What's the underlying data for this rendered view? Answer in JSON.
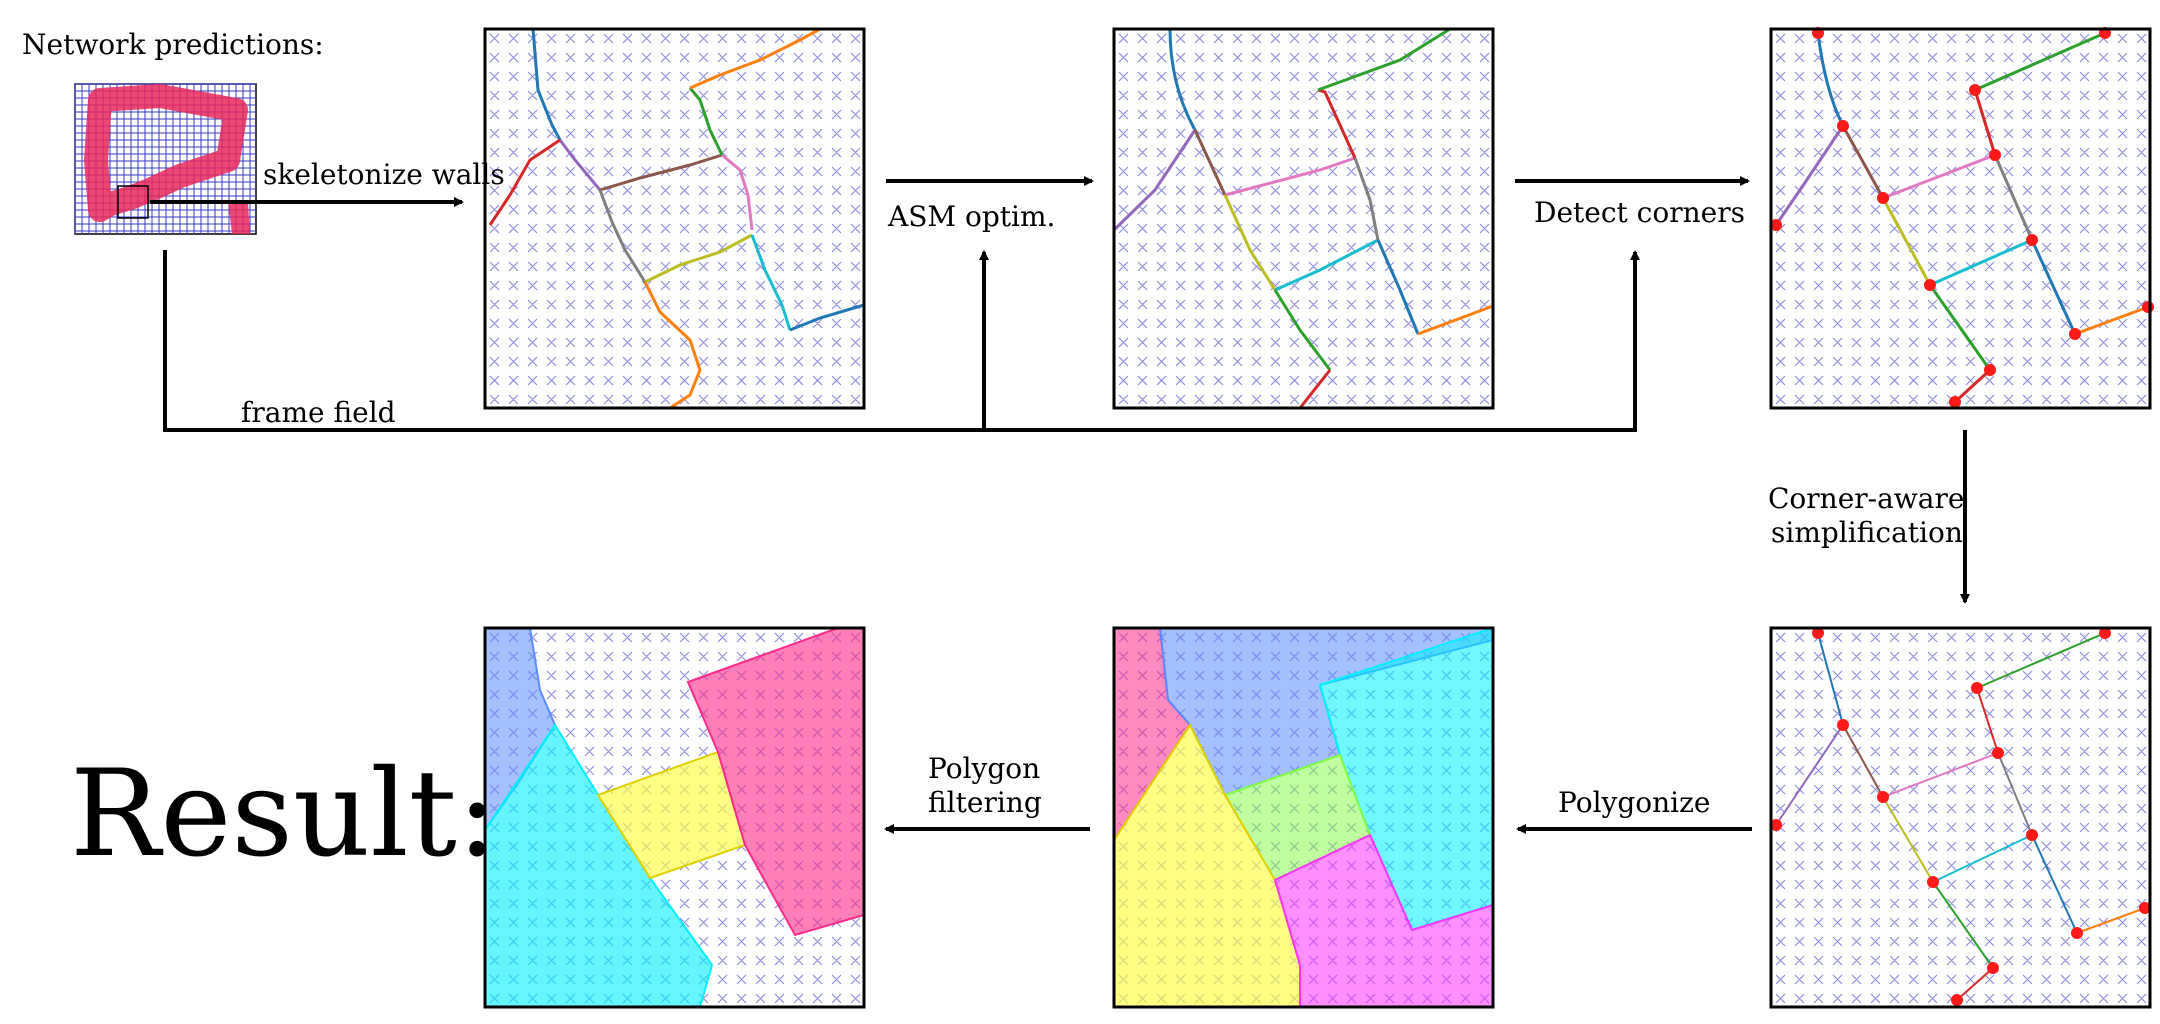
{
  "labels": {
    "network_predictions": "Network predictions:",
    "skeletonize": "skeletonize walls",
    "asm": "ASM optim.",
    "detect": "Detect corners",
    "frame_field": "frame field",
    "corner_aware_1": "Corner-aware",
    "corner_aware_2": "simplification",
    "polygonize": "Polygonize",
    "polygon_filtering_1": "Polygon",
    "polygon_filtering_2": "filtering",
    "result": "Result:"
  },
  "colors": {
    "grid": "#8f8fe0",
    "pred_grid": "#3a3ac8",
    "wall": "#e8285a",
    "corner": "#ff1a1a",
    "arrow": "#000000",
    "blue": "#5a8cff",
    "cyan": "#00f0ff",
    "yellow": "#ffff40",
    "pink": "#ff2a8a",
    "magenta": "#ff33ff",
    "green": "#80ff40"
  },
  "skeleton_palette": [
    "#1f77b4",
    "#9467bd",
    "#8c564b",
    "#e377c2",
    "#bcbd22",
    "#17becf",
    "#2ca02c",
    "#ff7f0e",
    "#d62728",
    "#7f7f7f"
  ]
}
